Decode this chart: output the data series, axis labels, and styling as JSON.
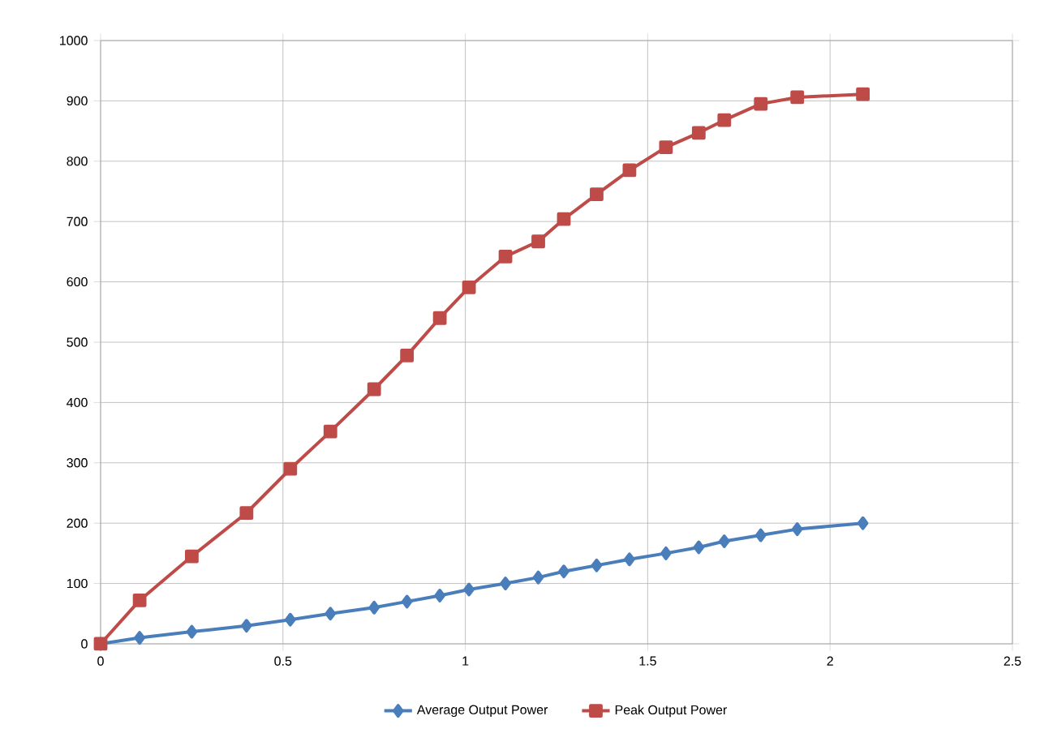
{
  "chart_data": {
    "type": "line",
    "x": [
      0,
      0.107,
      0.25,
      0.4,
      0.52,
      0.63,
      0.75,
      0.84,
      0.93,
      1.01,
      1.11,
      1.2,
      1.27,
      1.36,
      1.45,
      1.55,
      1.64,
      1.71,
      1.81,
      1.91,
      2.09
    ],
    "series": [
      {
        "name": "Average Output Power",
        "color": "#4a7ebb",
        "marker": "diamond",
        "values": [
          0,
          10,
          20,
          30,
          40,
          50,
          60,
          70,
          80,
          90,
          100,
          110,
          120,
          130,
          140,
          150,
          160,
          170,
          180,
          190,
          200
        ]
      },
      {
        "name": "Peak Output Power",
        "color": "#be4b48",
        "marker": "square",
        "values": [
          0,
          72,
          145,
          217,
          290,
          352,
          422,
          478,
          540,
          591,
          642,
          667,
          704,
          745,
          785,
          823,
          847,
          868,
          895,
          906,
          911
        ]
      }
    ],
    "xlim": [
      0,
      2.5
    ],
    "xticks": [
      0,
      0.5,
      1,
      1.5,
      2,
      2.5
    ],
    "ylim": [
      0,
      1000
    ],
    "yticks": [
      0,
      100,
      200,
      300,
      400,
      500,
      600,
      700,
      800,
      900,
      1000
    ],
    "grid": true,
    "legend": "bottom",
    "line_style": "solid"
  }
}
